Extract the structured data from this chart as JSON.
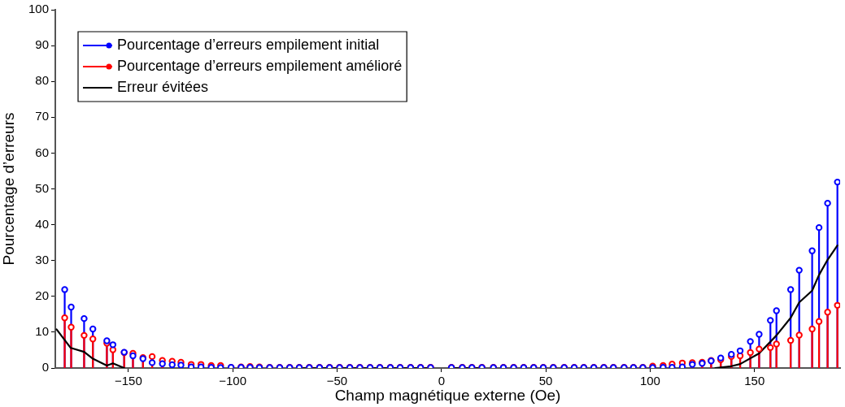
{
  "chart_data": {
    "type": "lollipop",
    "xlabel": "Champ magnétique externe (Oe)",
    "ylabel": "Pourcentage d’erreurs",
    "x": [
      -180.5,
      -177.4,
      -171.2,
      -167,
      -160.3,
      -157.4,
      -152,
      -147.8,
      -143,
      -138.6,
      -133.7,
      -129,
      -124.8,
      -119.9,
      -115.2,
      -110.3,
      -105.8,
      -100.8,
      -96,
      -91.7,
      -87.2,
      -82.3,
      -77.5,
      -72.7,
      -68.1,
      -63.3,
      -58.4,
      -53.6,
      -48.8,
      -43.9,
      -39.1,
      -34.2,
      -29.5,
      -24.5,
      -19.8,
      -14.8,
      -10,
      -5.2,
      4.8,
      10,
      14.6,
      19.4,
      24.9,
      29.7,
      34.6,
      39.4,
      44.2,
      48.8,
      53.6,
      58.8,
      63.6,
      68.2,
      73,
      77.8,
      82.4,
      87.5,
      92,
      96.5,
      101.2,
      106.2,
      110.5,
      115.4,
      120.2,
      124.9,
      129.2,
      133.8,
      138.9,
      143.1,
      148,
      152.2,
      157.6,
      160.5,
      167.3,
      171.4,
      177.6,
      180.9,
      185,
      189.7
    ],
    "series": [
      {
        "name": "Pourcentage d’erreurs empilement initial",
        "color": "#0000ff",
        "values": [
          21.9,
          17,
          13.8,
          10.9,
          7.6,
          6.5,
          4.4,
          3.4,
          2.6,
          1.5,
          1.2,
          0.9,
          0.8,
          0.3,
          0.3,
          0.2,
          0.1,
          0.2,
          0.2,
          0.2,
          0.1,
          0.1,
          0.1,
          0.1,
          0.1,
          0.1,
          0.1,
          0.1,
          0.1,
          0.1,
          0.1,
          0.1,
          0.1,
          0.1,
          0.1,
          0.1,
          0.1,
          0.1,
          0.1,
          0.1,
          0.1,
          0.1,
          0.1,
          0.1,
          0.1,
          0.1,
          0.1,
          0.1,
          0.1,
          0.1,
          0.1,
          0.1,
          0.1,
          0.1,
          0.1,
          0.1,
          0.1,
          0.1,
          0.1,
          0.2,
          0.2,
          0.3,
          1.0,
          1.3,
          2.0,
          2.8,
          3.8,
          4.8,
          7.4,
          9.4,
          13.3,
          16,
          21.9,
          27.3,
          32.7,
          39.2,
          46,
          51.9
        ]
      },
      {
        "name": "Pourcentage d’erreurs empilement amélioré",
        "color": "#ff0000",
        "values": [
          14,
          11.4,
          9.1,
          8.1,
          6.9,
          5.1,
          4.3,
          4.1,
          2.9,
          3.2,
          2.1,
          1.9,
          1.6,
          1,
          1,
          0.7,
          0.7,
          0.2,
          0.3,
          0.4,
          0.3,
          0.2,
          0.2,
          0.2,
          0.2,
          0.2,
          0.2,
          0.2,
          0.2,
          0.2,
          0.2,
          0.2,
          0.2,
          0.2,
          0.2,
          0.2,
          0.2,
          0.2,
          0.2,
          0.2,
          0.2,
          0.2,
          0.2,
          0.2,
          0.2,
          0.2,
          0.2,
          0.2,
          0.2,
          0.2,
          0.2,
          0.2,
          0.2,
          0.2,
          0.2,
          0.2,
          0.2,
          0.2,
          0.5,
          0.7,
          1.1,
          1.4,
          1.5,
          1.6,
          2.1,
          2.3,
          3.2,
          3.4,
          4.3,
          5.3,
          5.7,
          6.7,
          7.7,
          9.2,
          10.9,
          13,
          15.6,
          17.5
        ]
      },
      {
        "name": "Erreur évitées",
        "color": "#000000",
        "type": "line",
        "marker": "none",
        "x": [
          -184.4,
          -177.6,
          -171.2,
          -167,
          -160.3,
          -157.4,
          -152,
          -147.8,
          -66.5,
          -5.2,
          0,
          4.8,
          20,
          75,
          131.2,
          138.9,
          143.1,
          152.2,
          160.5,
          167.3,
          171.4,
          177.6,
          180.9,
          185,
          189.7
        ],
        "values": [
          10.8,
          5.6,
          4.5,
          2.6,
          0.7,
          1.3,
          0,
          null,
          0,
          0,
          null,
          0,
          0,
          null,
          0,
          0.5,
          1.1,
          4.1,
          9.1,
          14,
          18.3,
          21.6,
          26,
          30.2,
          34.2
        ]
      }
    ],
    "marker": "circle",
    "xlim": [
      -185,
      191
    ],
    "xticks": [
      -150,
      -100,
      -50,
      0,
      50,
      100,
      150
    ],
    "ylim": [
      0,
      100
    ],
    "yticks": [
      0,
      10,
      20,
      30,
      40,
      50,
      60,
      70,
      80,
      90,
      100
    ],
    "grid": false,
    "legend": "top left"
  }
}
